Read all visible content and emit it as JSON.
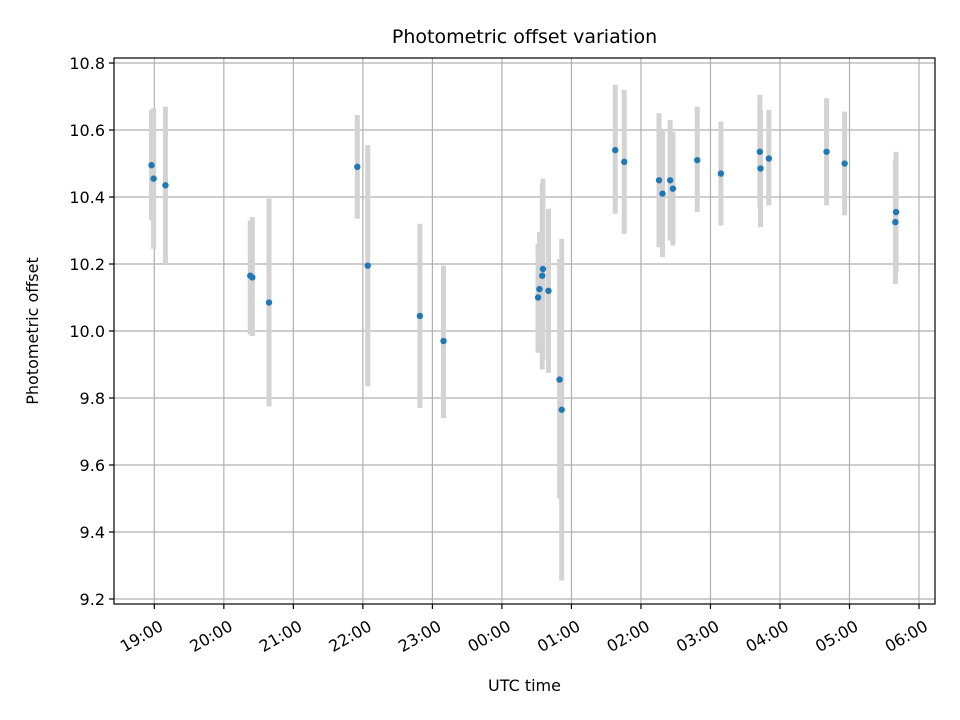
{
  "chart_data": {
    "type": "scatter",
    "title": "Photometric offset variation",
    "xlabel": "UTC time",
    "ylabel": "Photometric offset",
    "grid": true,
    "x_unit": "hours",
    "xlim": [
      -0.58,
      11.23
    ],
    "ylim": [
      9.185,
      10.815
    ],
    "x_ticks": [
      {
        "value": 0,
        "label": "19:00"
      },
      {
        "value": 1,
        "label": "20:00"
      },
      {
        "value": 2,
        "label": "21:00"
      },
      {
        "value": 3,
        "label": "22:00"
      },
      {
        "value": 4,
        "label": "23:00"
      },
      {
        "value": 5,
        "label": "00:00"
      },
      {
        "value": 6,
        "label": "01:00"
      },
      {
        "value": 7,
        "label": "02:00"
      },
      {
        "value": 8,
        "label": "03:00"
      },
      {
        "value": 9,
        "label": "04:00"
      },
      {
        "value": 10,
        "label": "05:00"
      },
      {
        "value": 11,
        "label": "06:00"
      }
    ],
    "y_ticks": [
      {
        "value": 9.2,
        "label": "9.2"
      },
      {
        "value": 9.4,
        "label": "9.4"
      },
      {
        "value": 9.6,
        "label": "9.6"
      },
      {
        "value": 9.8,
        "label": "9.8"
      },
      {
        "value": 10.0,
        "label": "10.0"
      },
      {
        "value": 10.2,
        "label": "10.2"
      },
      {
        "value": 10.4,
        "label": "10.4"
      },
      {
        "value": 10.6,
        "label": "10.6"
      },
      {
        "value": 10.8,
        "label": "10.8"
      }
    ],
    "point_color": "#1f77b4",
    "errorbar_color": "#d3d3d3",
    "points": [
      {
        "x": -0.04,
        "y": 10.495,
        "err_low": 10.33,
        "err_high": 10.66
      },
      {
        "x": -0.01,
        "y": 10.455,
        "err_low": 10.245,
        "err_high": 10.665
      },
      {
        "x": 0.16,
        "y": 10.435,
        "err_low": 10.2,
        "err_high": 10.67
      },
      {
        "x": 1.38,
        "y": 10.165,
        "err_low": 9.99,
        "err_high": 10.33
      },
      {
        "x": 1.41,
        "y": 10.16,
        "err_low": 9.985,
        "err_high": 10.34
      },
      {
        "x": 1.65,
        "y": 10.085,
        "err_low": 9.775,
        "err_high": 10.395
      },
      {
        "x": 2.92,
        "y": 10.49,
        "err_low": 10.335,
        "err_high": 10.645
      },
      {
        "x": 3.07,
        "y": 10.195,
        "err_low": 9.835,
        "err_high": 10.555
      },
      {
        "x": 3.82,
        "y": 10.045,
        "err_low": 9.77,
        "err_high": 10.32
      },
      {
        "x": 4.16,
        "y": 9.97,
        "err_low": 9.74,
        "err_high": 10.195
      },
      {
        "x": 5.52,
        "y": 10.1,
        "err_low": 9.935,
        "err_high": 10.26
      },
      {
        "x": 5.54,
        "y": 10.125,
        "err_low": 9.955,
        "err_high": 10.295
      },
      {
        "x": 5.58,
        "y": 10.165,
        "err_low": 9.885,
        "err_high": 10.44
      },
      {
        "x": 5.59,
        "y": 10.185,
        "err_low": 9.915,
        "err_high": 10.455
      },
      {
        "x": 5.67,
        "y": 10.12,
        "err_low": 9.875,
        "err_high": 10.365
      },
      {
        "x": 5.83,
        "y": 9.855,
        "err_low": 9.5,
        "err_high": 10.215
      },
      {
        "x": 5.86,
        "y": 9.765,
        "err_low": 9.255,
        "err_high": 10.275
      },
      {
        "x": 6.63,
        "y": 10.54,
        "err_low": 10.35,
        "err_high": 10.735
      },
      {
        "x": 6.76,
        "y": 10.505,
        "err_low": 10.29,
        "err_high": 10.72
      },
      {
        "x": 7.26,
        "y": 10.45,
        "err_low": 10.25,
        "err_high": 10.65
      },
      {
        "x": 7.31,
        "y": 10.41,
        "err_low": 10.22,
        "err_high": 10.6
      },
      {
        "x": 7.42,
        "y": 10.45,
        "err_low": 10.27,
        "err_high": 10.63
      },
      {
        "x": 7.46,
        "y": 10.425,
        "err_low": 10.255,
        "err_high": 10.595
      },
      {
        "x": 7.81,
        "y": 10.51,
        "err_low": 10.355,
        "err_high": 10.67
      },
      {
        "x": 8.15,
        "y": 10.47,
        "err_low": 10.315,
        "err_high": 10.625
      },
      {
        "x": 8.71,
        "y": 10.535,
        "err_low": 10.37,
        "err_high": 10.705
      },
      {
        "x": 8.72,
        "y": 10.485,
        "err_low": 10.31,
        "err_high": 10.66
      },
      {
        "x": 8.84,
        "y": 10.515,
        "err_low": 10.375,
        "err_high": 10.66
      },
      {
        "x": 9.67,
        "y": 10.535,
        "err_low": 10.375,
        "err_high": 10.695
      },
      {
        "x": 9.93,
        "y": 10.5,
        "err_low": 10.345,
        "err_high": 10.655
      },
      {
        "x": 10.66,
        "y": 10.325,
        "err_low": 10.14,
        "err_high": 10.51
      },
      {
        "x": 10.67,
        "y": 10.355,
        "err_low": 10.175,
        "err_high": 10.535
      }
    ]
  }
}
